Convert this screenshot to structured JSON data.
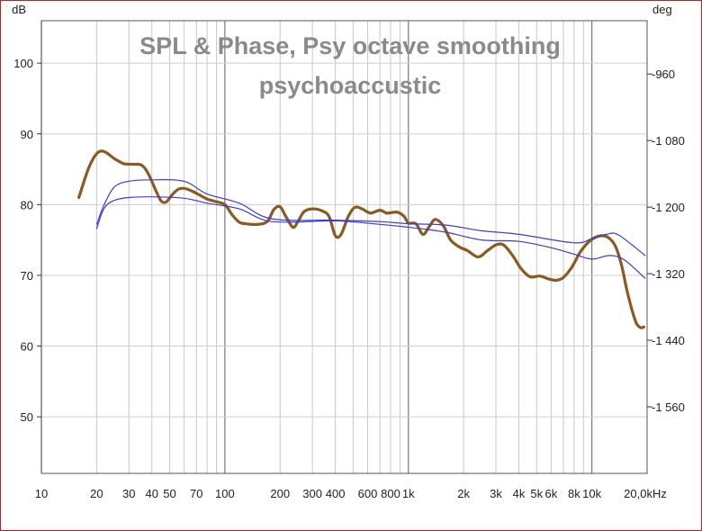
{
  "chart_data": {
    "type": "line",
    "title": "SPL & Phase, Psy octave smoothing",
    "subtitle": "psychoaccustic",
    "ylabel_left": "dB",
    "ylabel_right": "deg",
    "x_scale": "log",
    "xlim": [
      10,
      20000
    ],
    "ylim": [
      42,
      106
    ],
    "ylim_right": [
      -1680,
      -864
    ],
    "grid": true,
    "x_ticks": [
      {
        "v": 10,
        "label": "10"
      },
      {
        "v": 20,
        "label": "20"
      },
      {
        "v": 30,
        "label": "30"
      },
      {
        "v": 40,
        "label": "40"
      },
      {
        "v": 50,
        "label": "50"
      },
      {
        "v": 70,
        "label": "70"
      },
      {
        "v": 100,
        "label": "100"
      },
      {
        "v": 200,
        "label": "200"
      },
      {
        "v": 300,
        "label": "300"
      },
      {
        "v": 400,
        "label": "400"
      },
      {
        "v": 600,
        "label": "600"
      },
      {
        "v": 800,
        "label": "800"
      },
      {
        "v": 1000,
        "label": "1k"
      },
      {
        "v": 2000,
        "label": "2k"
      },
      {
        "v": 3000,
        "label": "3k"
      },
      {
        "v": 4000,
        "label": "4k"
      },
      {
        "v": 5000,
        "label": "5k"
      },
      {
        "v": 6000,
        "label": "6k"
      },
      {
        "v": 8000,
        "label": "8k"
      },
      {
        "v": 10000,
        "label": "10k"
      },
      {
        "v": 20000,
        "label": "20,0kHz"
      }
    ],
    "y_ticks_left": [
      {
        "v": 50,
        "label": "50"
      },
      {
        "v": 60,
        "label": "60"
      },
      {
        "v": 70,
        "label": "70"
      },
      {
        "v": 80,
        "label": "80"
      },
      {
        "v": 90,
        "label": "90"
      },
      {
        "v": 100,
        "label": "100"
      }
    ],
    "y_ticks_right": [
      {
        "v": -960,
        "label": "-960"
      },
      {
        "v": -1080,
        "label": "-1 080"
      },
      {
        "v": -1200,
        "label": "-1 200"
      },
      {
        "v": -1320,
        "label": "-1 320"
      },
      {
        "v": -1440,
        "label": "-1 440"
      },
      {
        "v": -1560,
        "label": "-1 560"
      }
    ],
    "series": [
      {
        "color": "#8b5a1e",
        "width": 3.2,
        "x": [
          16,
          18,
          20,
          22,
          25,
          28,
          31,
          35,
          38,
          42,
          45,
          48,
          52,
          56,
          60,
          65,
          70,
          80,
          90,
          100,
          110,
          120,
          130,
          150,
          170,
          185,
          200,
          215,
          235,
          250,
          270,
          300,
          340,
          370,
          400,
          430,
          470,
          510,
          560,
          620,
          700,
          760,
          820,
          880,
          950,
          1000,
          1100,
          1200,
          1300,
          1400,
          1550,
          1700,
          1900,
          2100,
          2400,
          2700,
          3000,
          3300,
          3700,
          4100,
          4600,
          5200,
          5800,
          6400,
          7000,
          7800,
          8600,
          9500,
          10500,
          11500,
          12500,
          13500,
          14500,
          15500,
          16500,
          17500,
          18500,
          19200
        ],
        "y": [
          81,
          85,
          87.2,
          87.5,
          86.5,
          85.8,
          85.7,
          85.6,
          84.5,
          82,
          80.5,
          80.4,
          81.5,
          82.2,
          82.3,
          82,
          81.6,
          80.8,
          80.4,
          80,
          78.5,
          77.5,
          77.3,
          77.2,
          77.6,
          79.3,
          79.7,
          78.3,
          76.8,
          77.6,
          79,
          79.4,
          79.1,
          78.3,
          75.6,
          75.8,
          78.3,
          79.6,
          79.4,
          78.8,
          79.2,
          78.8,
          78.9,
          78.9,
          78.3,
          77.4,
          77.3,
          75.8,
          76.9,
          77.9,
          77,
          75,
          74,
          73.5,
          72.6,
          73.5,
          74.3,
          74.3,
          72.8,
          71,
          69.8,
          69.9,
          69.5,
          69.3,
          69.7,
          71.2,
          73.2,
          74.6,
          75.4,
          75.6,
          75.2,
          74,
          71.5,
          68,
          65.2,
          63.2,
          62.6,
          62.7
        ]
      },
      {
        "color": "#3c3cdc",
        "width": 1.2,
        "x": [
          20,
          22,
          25,
          30,
          40,
          60,
          80,
          120,
          180,
          400,
          700,
          1000,
          1600,
          2500,
          4000,
          8000,
          10000,
          12000,
          14000,
          19500
        ],
        "y": [
          77.2,
          80,
          82.5,
          83.3,
          83.5,
          83.3,
          81.5,
          80.2,
          78,
          77.8,
          77.6,
          77.3,
          77.1,
          76.3,
          75.8,
          74.6,
          75.2,
          75.8,
          75.7,
          72.8
        ]
      },
      {
        "color": "#3c3cdc",
        "width": 1.2,
        "x": [
          20,
          22,
          25,
          30,
          40,
          60,
          80,
          120,
          180,
          400,
          700,
          1000,
          1600,
          2500,
          4000,
          6000,
          8000,
          10000,
          12500,
          15000,
          19500
        ],
        "y": [
          76.6,
          79.5,
          80.6,
          81,
          81.1,
          80.9,
          80.2,
          79.4,
          77.6,
          77.7,
          77.2,
          76.8,
          76.1,
          75,
          74.8,
          73.9,
          73,
          72.3,
          72.8,
          72.2,
          69.6
        ]
      }
    ]
  }
}
